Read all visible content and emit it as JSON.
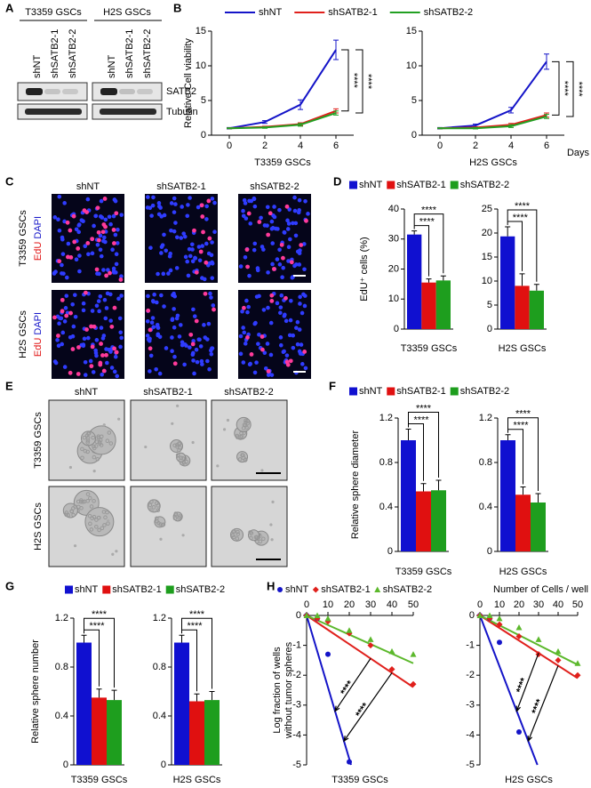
{
  "panel_labels": [
    "A",
    "B",
    "C",
    "D",
    "E",
    "F",
    "G",
    "H"
  ],
  "blot": {
    "groups": [
      {
        "name": "T3359 GSCs",
        "lanes": [
          "shNT",
          "shSATB2-1",
          "shSATB2-2"
        ]
      },
      {
        "name": "H2S GSCs",
        "lanes": [
          "shNT",
          "shSATB2-1",
          "shSATB2-2"
        ]
      }
    ],
    "bands": [
      "SATB2",
      "Tubulin"
    ]
  },
  "edu": {
    "columns": [
      "shNT",
      "shSATB2-1",
      "shSATB2-2"
    ],
    "rows": [
      {
        "group": "T3359 GSCs",
        "stains": [
          "EdU",
          "DAPI"
        ]
      },
      {
        "group": "H2S GSCs",
        "stains": [
          "EdU",
          "DAPI"
        ]
      }
    ]
  },
  "spheres": {
    "columns": [
      "shNT",
      "shSATB2-1",
      "shSATB2-2"
    ],
    "rows": [
      "T3359 GSCs",
      "H2S GSCs"
    ]
  },
  "chart_data": [
    {
      "type": "line",
      "ylabel": "Relative Cell viability",
      "xaxis_title": "Days",
      "series": [
        {
          "name": "shNT",
          "color": "#1414c8"
        },
        {
          "name": "shSATB2-1",
          "color": "#e0201c"
        },
        {
          "name": "shSATB2-2",
          "color": "#22a022"
        }
      ],
      "subplots": [
        {
          "xlabel": "T3359 GSCs",
          "x": [
            0,
            2,
            4,
            6
          ],
          "xlim": [
            -1,
            7
          ],
          "xticks": [
            0,
            2,
            4,
            6
          ],
          "ylim": [
            0,
            15
          ],
          "yticks": [
            0,
            5,
            10,
            15
          ],
          "values": [
            [
              1,
              1.9,
              4.4,
              12.3
            ],
            [
              1,
              1.2,
              1.6,
              3.5
            ],
            [
              1,
              1.1,
              1.5,
              3.2
            ]
          ],
          "errors": [
            [
              0.1,
              0.2,
              0.7,
              1.4
            ],
            [
              0.05,
              0.1,
              0.2,
              0.3
            ],
            [
              0.05,
              0.1,
              0.2,
              0.3
            ]
          ],
          "annotations": [
            "****",
            "****"
          ]
        },
        {
          "xlabel": "H2S GSCs",
          "x": [
            0,
            2,
            4,
            6
          ],
          "xlim": [
            -1,
            7
          ],
          "xticks": [
            0,
            2,
            4,
            6
          ],
          "ylim": [
            0,
            15
          ],
          "yticks": [
            0,
            5,
            10,
            15
          ],
          "values": [
            [
              1,
              1.4,
              3.6,
              10.6
            ],
            [
              1,
              1.1,
              1.5,
              2.9
            ],
            [
              1,
              1.0,
              1.3,
              2.7
            ]
          ],
          "errors": [
            [
              0.1,
              0.2,
              0.4,
              1.1
            ],
            [
              0.05,
              0.1,
              0.2,
              0.3
            ],
            [
              0.05,
              0.1,
              0.2,
              0.3
            ]
          ],
          "annotations": [
            "****",
            "****"
          ]
        }
      ]
    },
    {
      "type": "bar",
      "ylabel": "EdU⁺ cells (%)",
      "series": [
        {
          "name": "shNT",
          "color": "#1010d0"
        },
        {
          "name": "shSATB2-1",
          "color": "#e01010"
        },
        {
          "name": "shSATB2-2",
          "color": "#1e9e1e"
        }
      ],
      "subplots": [
        {
          "xlabel": "T3359 GSCs",
          "ylim": [
            0,
            40
          ],
          "yticks": [
            0,
            10,
            20,
            30,
            40
          ],
          "values": [
            31.5,
            15.5,
            16.2
          ],
          "errors": [
            1.2,
            1.2,
            1.5
          ],
          "annotations": [
            "****",
            "****"
          ]
        },
        {
          "xlabel": "H2S GSCs",
          "ylim": [
            0,
            25
          ],
          "yticks": [
            0,
            5,
            10,
            15,
            20,
            25
          ],
          "values": [
            19.3,
            9.0,
            8.0
          ],
          "errors": [
            2.0,
            2.5,
            1.3
          ],
          "annotations": [
            "****",
            "****"
          ]
        }
      ]
    },
    {
      "type": "bar",
      "ylabel": "Relative sphere diameter",
      "series": [
        {
          "name": "shNT",
          "color": "#1010d0"
        },
        {
          "name": "shSATB2-1",
          "color": "#e01010"
        },
        {
          "name": "shSATB2-2",
          "color": "#1e9e1e"
        }
      ],
      "subplots": [
        {
          "xlabel": "T3359 GSCs",
          "ylim": [
            0,
            1.2
          ],
          "yticks": [
            0,
            0.4,
            0.8,
            1.2
          ],
          "values": [
            1.0,
            0.54,
            0.55
          ],
          "errors": [
            0.1,
            0.07,
            0.09
          ],
          "annotations": [
            "****",
            "****"
          ]
        },
        {
          "xlabel": "H2S GSCs",
          "ylim": [
            0,
            1.2
          ],
          "yticks": [
            0,
            0.4,
            0.8,
            1.2
          ],
          "values": [
            1.0,
            0.51,
            0.44
          ],
          "errors": [
            0.05,
            0.07,
            0.08
          ],
          "annotations": [
            "****",
            "****"
          ]
        }
      ]
    },
    {
      "type": "bar",
      "ylabel": "Relative sphere number",
      "series": [
        {
          "name": "shNT",
          "color": "#1010d0"
        },
        {
          "name": "shSATB2-1",
          "color": "#e01010"
        },
        {
          "name": "shSATB2-2",
          "color": "#1e9e1e"
        }
      ],
      "subplots": [
        {
          "xlabel": "T3359 GSCs",
          "ylim": [
            0,
            1.2
          ],
          "yticks": [
            0,
            0.4,
            0.8,
            1.2
          ],
          "values": [
            1.0,
            0.55,
            0.53
          ],
          "errors": [
            0.06,
            0.07,
            0.08
          ],
          "annotations": [
            "****",
            "****"
          ]
        },
        {
          "xlabel": "H2S GSCs",
          "ylim": [
            0,
            1.2
          ],
          "yticks": [
            0,
            0.4,
            0.8,
            1.2
          ],
          "values": [
            1.0,
            0.52,
            0.53
          ],
          "errors": [
            0.06,
            0.06,
            0.07
          ],
          "annotations": [
            "****",
            "****"
          ]
        }
      ]
    },
    {
      "type": "scatter",
      "ylabel": [
        "Log fraction of wells",
        "without tumor spheres"
      ],
      "xaxis_title": "Number of Cells / well",
      "series": [
        {
          "name": "shNT",
          "color": "#1414c8",
          "marker": "circle"
        },
        {
          "name": "shSATB2-1",
          "color": "#e0201c",
          "marker": "diamond"
        },
        {
          "name": "shSATB2-2",
          "color": "#5cb82c",
          "marker": "triangle"
        }
      ],
      "subplots": [
        {
          "xlabel": "T3359 GSCs",
          "x": [
            0,
            5,
            10,
            20,
            30,
            40,
            50
          ],
          "xlim": [
            0,
            50
          ],
          "xticks": [
            0,
            10,
            20,
            30,
            40,
            50
          ],
          "ylim": [
            -5,
            0
          ],
          "yticks": [
            0,
            -1,
            -2,
            -3,
            -4,
            -5
          ],
          "values": [
            [
              0,
              -0.1,
              -1.3,
              -4.9,
              null,
              null,
              null
            ],
            [
              0,
              -0.1,
              -0.2,
              -0.6,
              -1.0,
              -1.8,
              -2.3
            ],
            [
              0,
              0,
              -0.1,
              -0.5,
              -0.8,
              -1.2,
              -1.3
            ]
          ],
          "fit_slopes": [
            -0.24,
            -0.048,
            -0.032
          ],
          "annotations": [
            "****",
            "****"
          ]
        },
        {
          "xlabel": "H2S GSCs",
          "x": [
            0,
            5,
            10,
            20,
            30,
            40,
            50
          ],
          "xlim": [
            0,
            50
          ],
          "xticks": [
            0,
            10,
            20,
            30,
            40,
            50
          ],
          "ylim": [
            -5,
            0
          ],
          "yticks": [
            0,
            -1,
            -2,
            -3,
            -4,
            -5
          ],
          "values": [
            [
              0,
              -0.1,
              -0.9,
              -3.9,
              null,
              null,
              null
            ],
            [
              0,
              -0.1,
              -0.3,
              -0.7,
              -1.3,
              -1.5,
              -2.0
            ],
            [
              0,
              0,
              -0.1,
              -0.4,
              -0.8,
              -1.2,
              -1.6
            ]
          ],
          "fit_slopes": [
            -0.17,
            -0.042,
            -0.033
          ],
          "annotations": [
            "****",
            "****"
          ]
        }
      ]
    }
  ]
}
